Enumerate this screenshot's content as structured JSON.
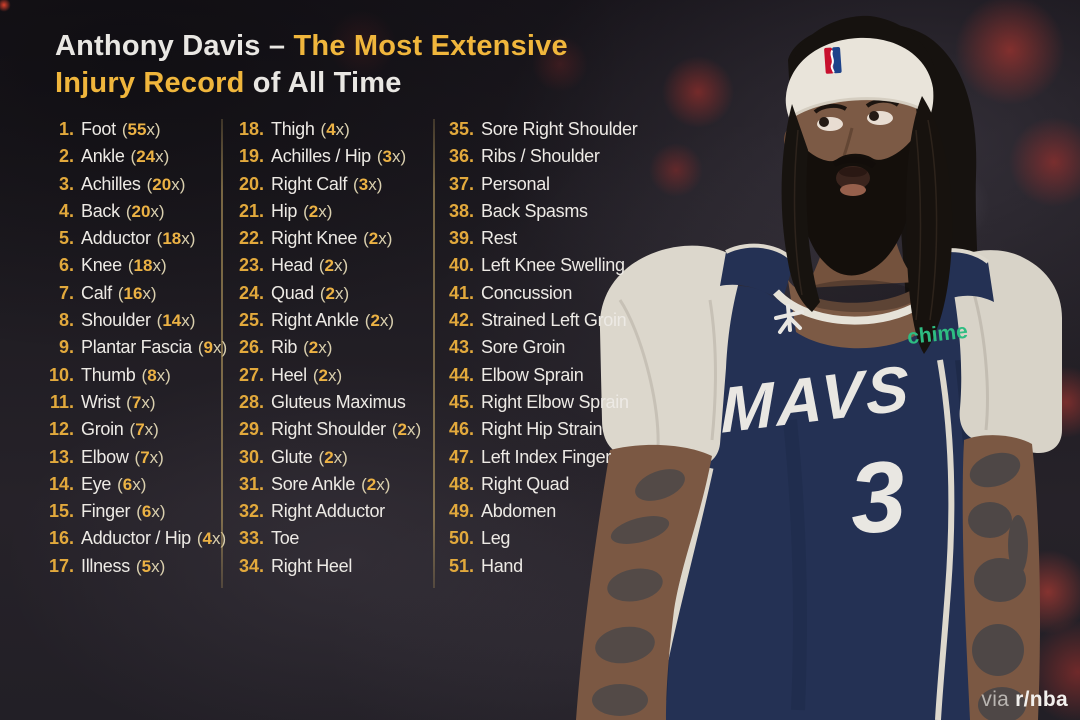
{
  "title": {
    "line1_white": "Anthony Davis – ",
    "line1_gold": "The Most Extensive",
    "line2_gold": "Injury Record",
    "line2_white": " of All Time"
  },
  "columns": [
    {
      "items": [
        {
          "num": "1.",
          "label": "Foot",
          "count": "55x"
        },
        {
          "num": "2.",
          "label": "Ankle",
          "count": "24x"
        },
        {
          "num": "3.",
          "label": "Achilles",
          "count": "20x"
        },
        {
          "num": "4.",
          "label": "Back",
          "count": "20x"
        },
        {
          "num": "5.",
          "label": "Adductor",
          "count": "18x"
        },
        {
          "num": "6.",
          "label": "Knee",
          "count": "18x"
        },
        {
          "num": "7.",
          "label": "Calf",
          "count": "16x"
        },
        {
          "num": "8.",
          "label": "Shoulder",
          "count": "14x"
        },
        {
          "num": "9.",
          "label": "Plantar Fascia",
          "count": "9x"
        },
        {
          "num": "10.",
          "label": "Thumb",
          "count": "8x"
        },
        {
          "num": "11.",
          "label": "Wrist",
          "count": "7x"
        },
        {
          "num": "12.",
          "label": "Groin",
          "count": "7x"
        },
        {
          "num": "13.",
          "label": "Elbow",
          "count": "7x"
        },
        {
          "num": "14.",
          "label": "Eye",
          "count": "6x"
        },
        {
          "num": "15.",
          "label": "Finger",
          "count": "6x"
        },
        {
          "num": "16.",
          "label": "Adductor / Hip",
          "count": "4x"
        },
        {
          "num": "17.",
          "label": "Illness",
          "count": "5x"
        }
      ]
    },
    {
      "items": [
        {
          "num": "18.",
          "label": "Thigh",
          "count": "4x"
        },
        {
          "num": "19.",
          "label": "Achilles / Hip",
          "count": "3x"
        },
        {
          "num": "20.",
          "label": "Right Calf",
          "count": "3x"
        },
        {
          "num": "21.",
          "label": "Hip",
          "count": "2x"
        },
        {
          "num": "22.",
          "label": "Right Knee",
          "count": "2x"
        },
        {
          "num": "23.",
          "label": "Head",
          "count": "2x"
        },
        {
          "num": "24.",
          "label": "Quad",
          "count": "2x"
        },
        {
          "num": "25.",
          "label": "Right Ankle",
          "count": "2x"
        },
        {
          "num": "26.",
          "label": "Rib",
          "count": "2x"
        },
        {
          "num": "27.",
          "label": "Heel",
          "count": "2x"
        },
        {
          "num": "28.",
          "label": "Gluteus Maximus",
          "count": null
        },
        {
          "num": "29.",
          "label": "Right Shoulder",
          "count": "2x"
        },
        {
          "num": "30.",
          "label": "Glute",
          "count": "2x"
        },
        {
          "num": "31.",
          "label": "Sore Ankle",
          "count": "2x"
        },
        {
          "num": "32.",
          "label": "Right Adductor",
          "count": null
        },
        {
          "num": "33.",
          "label": "Toe",
          "count": null
        },
        {
          "num": "34.",
          "label": "Right Heel",
          "count": null
        }
      ]
    },
    {
      "items": [
        {
          "num": "35.",
          "label": "Sore Right Shoulder",
          "count": null
        },
        {
          "num": "36.",
          "label": "Ribs / Shoulder",
          "count": null
        },
        {
          "num": "37.",
          "label": "Personal",
          "count": null
        },
        {
          "num": "38.",
          "label": "Back Spasms",
          "count": null
        },
        {
          "num": "39.",
          "label": "Rest",
          "count": null
        },
        {
          "num": "40.",
          "label": "Left Knee Swelling",
          "count": null
        },
        {
          "num": "41.",
          "label": "Concussion",
          "count": null
        },
        {
          "num": "42.",
          "label": "Strained Left Groin",
          "count": null
        },
        {
          "num": "43.",
          "label": "Sore Groin",
          "count": null
        },
        {
          "num": "44.",
          "label": "Elbow Sprain",
          "count": null
        },
        {
          "num": "45.",
          "label": "Right Elbow Sprain",
          "count": null
        },
        {
          "num": "46.",
          "label": "Right Hip Strain",
          "count": null
        },
        {
          "num": "47.",
          "label": "Left Index Finger",
          "count": null
        },
        {
          "num": "48.",
          "label": "Right Quad",
          "count": null
        },
        {
          "num": "49.",
          "label": "Abdomen",
          "count": null
        },
        {
          "num": "50.",
          "label": "Leg",
          "count": null
        },
        {
          "num": "51.",
          "label": "Hand",
          "count": null
        }
      ]
    }
  ],
  "player": {
    "jersey_team": "MAVS",
    "jersey_number": "3",
    "sponsor": "chime"
  },
  "credit": {
    "prefix": "via",
    "source": "r/nba"
  },
  "colors": {
    "accent_gold": "#ecb244",
    "text_white": "#edeae5",
    "jersey_navy": "#243154",
    "chime_green": "#2ebd82",
    "bokeh_red": "#c23a32",
    "divider_gold": "#c6a864"
  }
}
